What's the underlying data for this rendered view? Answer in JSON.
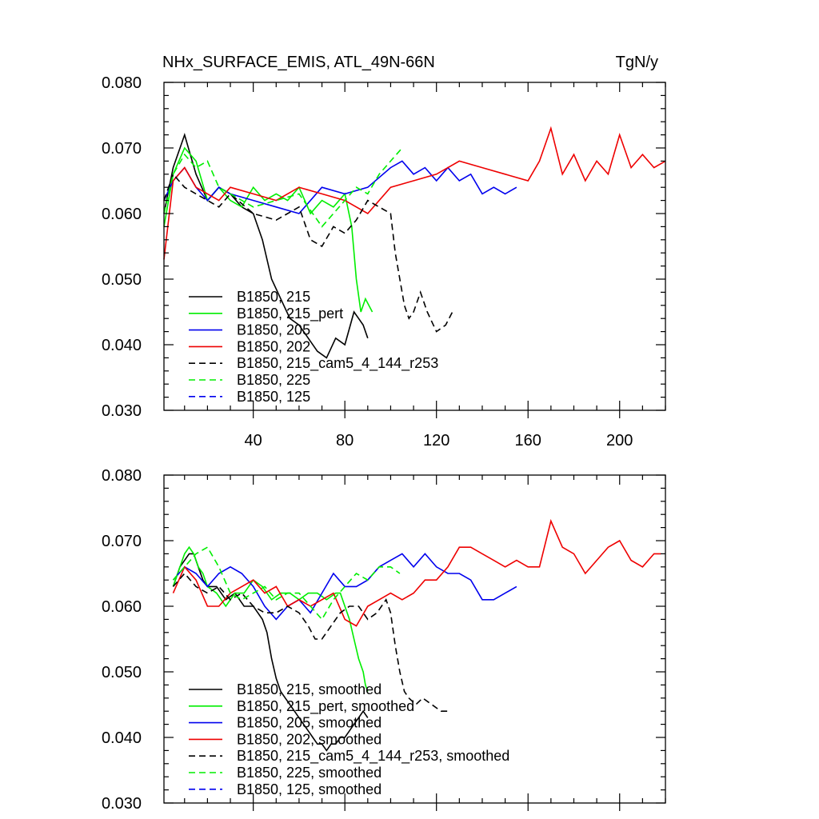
{
  "chart_data": [
    {
      "type": "line",
      "panel": "top",
      "title_left": "NHx_SURFACE_EMIS, ATL_49N-66N",
      "title_right": "TgN/y",
      "xlabel": "",
      "ylabel": "",
      "xlim": [
        1,
        220
      ],
      "ylim": [
        0.03,
        0.08
      ],
      "x_ticks": [
        40,
        80,
        120,
        160,
        200
      ],
      "x_tick_labels": [
        "40",
        "80",
        "120",
        "160",
        "200"
      ],
      "y_ticks": [
        0.03,
        0.04,
        0.05,
        0.06,
        0.07,
        0.08
      ],
      "y_tick_labels": [
        "0.030",
        "0.040",
        "0.050",
        "0.060",
        "0.070",
        "0.080"
      ],
      "legend_position": "bottom-left",
      "series": [
        {
          "name": "B1850, 215",
          "label": "B1850, 215",
          "color": "#000000",
          "dash": "solid",
          "x": [
            1,
            5,
            10,
            15,
            20,
            25,
            30,
            35,
            40,
            44,
            48,
            52,
            56,
            60,
            64,
            68,
            72,
            76,
            80,
            84,
            86,
            88,
            90
          ],
          "y": [
            0.06,
            0.067,
            0.072,
            0.066,
            0.062,
            0.064,
            0.063,
            0.061,
            0.06,
            0.056,
            0.05,
            0.047,
            0.044,
            0.043,
            0.041,
            0.039,
            0.038,
            0.041,
            0.04,
            0.045,
            0.044,
            0.043,
            0.041
          ]
        },
        {
          "name": "B1850, 215_pert",
          "label": "B1850, 215_pert",
          "color": "#00ee00",
          "dash": "solid",
          "x": [
            1,
            5,
            10,
            15,
            20,
            25,
            30,
            35,
            40,
            45,
            50,
            55,
            60,
            65,
            70,
            75,
            80,
            83,
            85,
            87,
            89,
            92
          ],
          "y": [
            0.058,
            0.066,
            0.07,
            0.068,
            0.062,
            0.064,
            0.062,
            0.061,
            0.064,
            0.062,
            0.063,
            0.062,
            0.064,
            0.06,
            0.062,
            0.061,
            0.063,
            0.058,
            0.05,
            0.045,
            0.047,
            0.045
          ]
        },
        {
          "name": "B1850, 205",
          "label": "B1850, 205",
          "color": "#0000ee",
          "dash": "solid",
          "x": [
            1,
            5,
            10,
            15,
            20,
            25,
            30,
            40,
            50,
            60,
            70,
            80,
            90,
            100,
            105,
            110,
            115,
            120,
            125,
            130,
            135,
            140,
            145,
            150,
            155
          ],
          "y": [
            0.062,
            0.065,
            0.067,
            0.064,
            0.062,
            0.064,
            0.063,
            0.062,
            0.061,
            0.06,
            0.064,
            0.063,
            0.064,
            0.067,
            0.068,
            0.066,
            0.067,
            0.065,
            0.067,
            0.065,
            0.066,
            0.063,
            0.064,
            0.063,
            0.064
          ]
        },
        {
          "name": "B1850, 202",
          "label": "B1850, 202",
          "color": "#ee0000",
          "dash": "solid",
          "x": [
            1,
            5,
            10,
            15,
            20,
            25,
            30,
            40,
            50,
            60,
            70,
            80,
            90,
            100,
            110,
            120,
            130,
            140,
            150,
            160,
            165,
            170,
            175,
            180,
            185,
            190,
            195,
            200,
            205,
            210,
            215,
            220
          ],
          "y": [
            0.053,
            0.065,
            0.067,
            0.064,
            0.063,
            0.062,
            0.064,
            0.063,
            0.062,
            0.064,
            0.063,
            0.062,
            0.06,
            0.064,
            0.065,
            0.066,
            0.068,
            0.067,
            0.066,
            0.065,
            0.068,
            0.073,
            0.066,
            0.069,
            0.065,
            0.068,
            0.066,
            0.072,
            0.067,
            0.069,
            0.067,
            0.068
          ]
        },
        {
          "name": "B1850, 215_cam5_4_144_r253",
          "label": "B1850, 215_cam5_4_144_r253",
          "color": "#000000",
          "dash": "dashed",
          "x": [
            1,
            5,
            10,
            15,
            20,
            25,
            30,
            40,
            50,
            60,
            65,
            70,
            75,
            80,
            85,
            90,
            95,
            100,
            102,
            104,
            106,
            108,
            110,
            113,
            116,
            120,
            124,
            127
          ],
          "y": [
            0.062,
            0.066,
            0.064,
            0.063,
            0.062,
            0.061,
            0.063,
            0.06,
            0.059,
            0.061,
            0.056,
            0.055,
            0.058,
            0.057,
            0.059,
            0.062,
            0.061,
            0.06,
            0.054,
            0.05,
            0.046,
            0.044,
            0.045,
            0.048,
            0.045,
            0.042,
            0.043,
            0.045
          ]
        },
        {
          "name": "B1850, 225",
          "label": "B1850, 225",
          "color": "#00ee00",
          "dash": "dashed",
          "x": [
            1,
            5,
            10,
            15,
            20,
            25,
            30,
            40,
            50,
            60,
            70,
            75,
            80,
            85,
            90,
            95,
            100,
            105
          ],
          "y": [
            0.06,
            0.066,
            0.069,
            0.067,
            0.068,
            0.064,
            0.063,
            0.061,
            0.062,
            0.063,
            0.058,
            0.06,
            0.062,
            0.064,
            0.063,
            0.066,
            0.068,
            0.07
          ]
        },
        {
          "name": "B1850, 125",
          "label": "B1850, 125",
          "color": "#0000ee",
          "dash": "dashed",
          "x": [],
          "y": []
        }
      ]
    },
    {
      "type": "line",
      "panel": "bottom",
      "xlabel": "",
      "ylabel": "",
      "xlim": [
        1,
        220
      ],
      "ylim": [
        0.03,
        0.08
      ],
      "x_ticks": [
        40,
        80,
        120,
        160,
        200
      ],
      "y_ticks": [
        0.03,
        0.04,
        0.05,
        0.06,
        0.07,
        0.08
      ],
      "y_tick_labels": [
        "0.030",
        "0.040",
        "0.050",
        "0.060",
        "0.070",
        "0.080"
      ],
      "legend_position": "bottom-left",
      "series": [
        {
          "name": "B1850, 215, smoothed",
          "label": "B1850, 215, smoothed",
          "color": "#000000",
          "dash": "solid",
          "x": [
            5,
            8,
            10,
            12,
            14,
            16,
            18,
            20,
            24,
            28,
            32,
            36,
            40,
            42,
            44,
            46,
            48,
            50,
            52,
            54,
            56,
            58,
            60,
            62,
            64,
            66,
            68,
            70,
            72,
            74,
            76,
            78,
            80,
            82,
            84,
            86,
            88,
            90
          ],
          "y": [
            0.063,
            0.066,
            0.067,
            0.068,
            0.068,
            0.066,
            0.064,
            0.063,
            0.063,
            0.061,
            0.062,
            0.06,
            0.06,
            0.059,
            0.058,
            0.056,
            0.052,
            0.049,
            0.047,
            0.046,
            0.045,
            0.044,
            0.043,
            0.042,
            0.041,
            0.04,
            0.039,
            0.039,
            0.038,
            0.039,
            0.039,
            0.04,
            0.04,
            0.041,
            0.042,
            0.043,
            0.044,
            0.043
          ]
        },
        {
          "name": "B1850, 215_pert, smoothed",
          "label": "B1850, 215_pert, smoothed",
          "color": "#00ee00",
          "dash": "solid",
          "x": [
            5,
            8,
            10,
            12,
            14,
            16,
            18,
            20,
            24,
            28,
            32,
            36,
            40,
            44,
            48,
            52,
            56,
            60,
            64,
            68,
            72,
            76,
            78,
            80,
            82,
            84,
            86,
            88,
            89,
            90
          ],
          "y": [
            0.063,
            0.066,
            0.068,
            0.069,
            0.068,
            0.066,
            0.065,
            0.063,
            0.062,
            0.06,
            0.062,
            0.062,
            0.064,
            0.063,
            0.061,
            0.062,
            0.062,
            0.061,
            0.062,
            0.062,
            0.061,
            0.062,
            0.062,
            0.06,
            0.058,
            0.055,
            0.052,
            0.05,
            0.048,
            0.047
          ]
        },
        {
          "name": "B1850, 205, smoothed",
          "label": "B1850, 205, smoothed",
          "color": "#0000ee",
          "dash": "solid",
          "x": [
            5,
            10,
            15,
            20,
            25,
            30,
            35,
            40,
            45,
            50,
            55,
            60,
            65,
            70,
            75,
            80,
            85,
            90,
            95,
            100,
            105,
            110,
            115,
            120,
            125,
            130,
            135,
            140,
            145,
            150,
            155
          ],
          "y": [
            0.064,
            0.066,
            0.065,
            0.063,
            0.065,
            0.066,
            0.065,
            0.063,
            0.06,
            0.058,
            0.06,
            0.061,
            0.059,
            0.062,
            0.065,
            0.063,
            0.063,
            0.064,
            0.066,
            0.067,
            0.068,
            0.066,
            0.068,
            0.066,
            0.065,
            0.065,
            0.064,
            0.061,
            0.061,
            0.062,
            0.063
          ]
        },
        {
          "name": "B1850, 202, smoothed",
          "label": "B1850, 202, smoothed",
          "color": "#ee0000",
          "dash": "solid",
          "x": [
            5,
            10,
            15,
            20,
            25,
            30,
            35,
            40,
            45,
            50,
            55,
            60,
            65,
            70,
            75,
            80,
            85,
            90,
            95,
            100,
            105,
            110,
            115,
            120,
            125,
            130,
            135,
            140,
            145,
            150,
            155,
            160,
            165,
            170,
            175,
            180,
            185,
            190,
            195,
            200,
            205,
            210,
            215,
            218
          ],
          "y": [
            0.062,
            0.066,
            0.064,
            0.06,
            0.06,
            0.062,
            0.063,
            0.064,
            0.062,
            0.063,
            0.06,
            0.061,
            0.06,
            0.061,
            0.062,
            0.058,
            0.057,
            0.06,
            0.061,
            0.062,
            0.061,
            0.062,
            0.064,
            0.064,
            0.066,
            0.069,
            0.069,
            0.068,
            0.067,
            0.066,
            0.067,
            0.066,
            0.066,
            0.073,
            0.069,
            0.068,
            0.065,
            0.067,
            0.069,
            0.07,
            0.067,
            0.066,
            0.068,
            0.068
          ]
        },
        {
          "name": "B1850, 215_cam5_4_144_r253, smoothed",
          "label": "B1850, 215_cam5_4_144_r253, smoothed",
          "color": "#000000",
          "dash": "dashed",
          "x": [
            5,
            10,
            15,
            20,
            25,
            30,
            35,
            40,
            45,
            50,
            55,
            60,
            64,
            67,
            70,
            74,
            78,
            82,
            86,
            90,
            94,
            98,
            100,
            102,
            104,
            106,
            108,
            111,
            114,
            118,
            122,
            126
          ],
          "y": [
            0.063,
            0.065,
            0.063,
            0.062,
            0.063,
            0.061,
            0.062,
            0.06,
            0.059,
            0.059,
            0.06,
            0.059,
            0.057,
            0.055,
            0.055,
            0.057,
            0.059,
            0.06,
            0.06,
            0.058,
            0.059,
            0.061,
            0.059,
            0.054,
            0.05,
            0.047,
            0.046,
            0.045,
            0.046,
            0.045,
            0.044,
            0.044
          ]
        },
        {
          "name": "B1850, 225, smoothed",
          "label": "B1850, 225, smoothed",
          "color": "#00ee00",
          "dash": "dashed",
          "x": [
            5,
            10,
            15,
            20,
            25,
            30,
            35,
            40,
            45,
            50,
            55,
            60,
            65,
            70,
            75,
            80,
            85,
            90,
            95,
            100,
            104
          ],
          "y": [
            0.064,
            0.066,
            0.068,
            0.069,
            0.066,
            0.062,
            0.061,
            0.062,
            0.063,
            0.061,
            0.062,
            0.062,
            0.06,
            0.058,
            0.061,
            0.063,
            0.065,
            0.064,
            0.066,
            0.066,
            0.065
          ]
        },
        {
          "name": "B1850, 125, smoothed",
          "label": "B1850, 125, smoothed",
          "color": "#0000ee",
          "dash": "dashed",
          "x": [],
          "y": []
        }
      ]
    }
  ]
}
